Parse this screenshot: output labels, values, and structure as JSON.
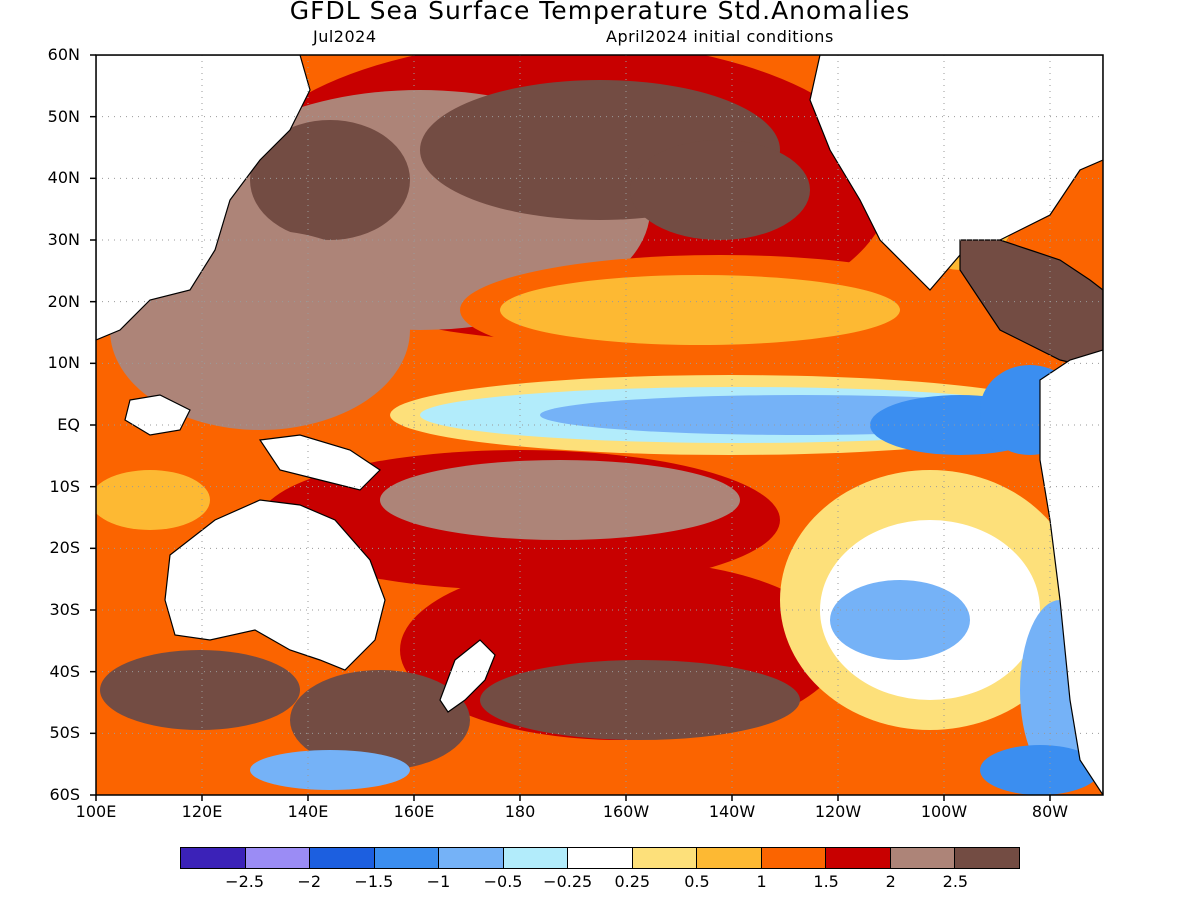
{
  "header": {
    "title": "GFDL Sea Surface Temperature Std.Anomalies",
    "valid_month": "Jul2024",
    "init_conditions": "April2024 initial conditions"
  },
  "axes": {
    "lat_labels": [
      "60N",
      "50N",
      "40N",
      "30N",
      "20N",
      "10N",
      "EQ",
      "10S",
      "20S",
      "30S",
      "40S",
      "50S",
      "60S"
    ],
    "lon_labels": [
      "100E",
      "120E",
      "140E",
      "160E",
      "180",
      "160W",
      "140W",
      "120W",
      "100W",
      "80W"
    ]
  },
  "colorbar": {
    "colors": [
      "#3b22b8",
      "#9b8cf5",
      "#1c5fe0",
      "#3b8ef0",
      "#75b2f7",
      "#b2ecfb",
      "#ffffff",
      "#fde07a",
      "#fdb933",
      "#fb6400",
      "#c80000",
      "#ad8478",
      "#734c43"
    ],
    "labels": [
      "−2.5",
      "−2",
      "−1.5",
      "−1",
      "−0.5",
      "−0.25",
      "0.25",
      "0.5",
      "1",
      "1.5",
      "2",
      "2.5"
    ]
  },
  "map": {
    "grid": "dotted",
    "land_color": "#ffffff",
    "coastline_color": "#000000"
  }
}
